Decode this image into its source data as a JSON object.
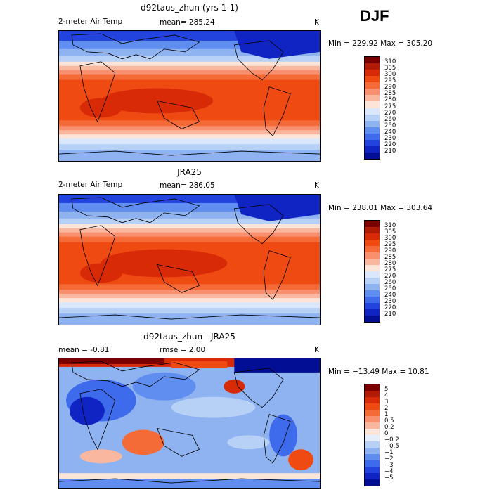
{
  "season": "DJF",
  "panels": [
    {
      "title": "d92taus_zhun (yrs 1-1)",
      "variable": "2-meter Air Temp",
      "stat_text": "mean= 285.24",
      "unit": "K",
      "minmax": "Min = 229.92 Max = 305.20",
      "colorbar_labels": [
        "310",
        "305",
        "300",
        "295",
        "290",
        "285",
        "280",
        "275",
        "270",
        "260",
        "250",
        "240",
        "230",
        "220",
        "210"
      ],
      "colorbar_colors": [
        "#7a0000",
        "#b11a04",
        "#d92a08",
        "#ef4a12",
        "#f56b38",
        "#f89070",
        "#f9b79f",
        "#fce5d8",
        "#dbe8fb",
        "#b6d0f6",
        "#8fb3f1",
        "#5f8ef0",
        "#3e6bec",
        "#2243de",
        "#1024c4",
        "#020f95"
      ]
    },
    {
      "title": "JRA25",
      "variable": "2-meter Air Temp",
      "stat_text": "mean= 286.05",
      "unit": "K",
      "minmax": "Min = 238.01 Max = 303.64",
      "colorbar_labels": [
        "310",
        "305",
        "300",
        "295",
        "290",
        "285",
        "280",
        "275",
        "270",
        "260",
        "250",
        "240",
        "230",
        "220",
        "210"
      ],
      "colorbar_colors": [
        "#7a0000",
        "#b11a04",
        "#d92a08",
        "#ef4a12",
        "#f56b38",
        "#f89070",
        "#f9b79f",
        "#fce5d8",
        "#dbe8fb",
        "#b6d0f6",
        "#8fb3f1",
        "#5f8ef0",
        "#3e6bec",
        "#2243de",
        "#1024c4",
        "#020f95"
      ]
    },
    {
      "title": "d92taus_zhun - JRA25",
      "variable": "",
      "stat_left": "mean =   -0.81",
      "stat_text": "rmse =    2.00",
      "unit": "K",
      "minmax": "Min = −13.49 Max =   10.81",
      "colorbar_labels": [
        "5",
        "4",
        "3",
        "2",
        "1",
        "0.5",
        "0.2",
        "0",
        "−0.2",
        "−0.5",
        "−1",
        "−2",
        "−3",
        "−4",
        "−5"
      ],
      "colorbar_colors": [
        "#7a0000",
        "#b11a04",
        "#d92a08",
        "#ef4a12",
        "#f56b38",
        "#f89070",
        "#f9b79f",
        "#fce5d8",
        "#e4eefc",
        "#b6d0f6",
        "#8fb3f1",
        "#5f8ef0",
        "#3e6bec",
        "#2243de",
        "#1024c4",
        "#020f95"
      ]
    }
  ]
}
